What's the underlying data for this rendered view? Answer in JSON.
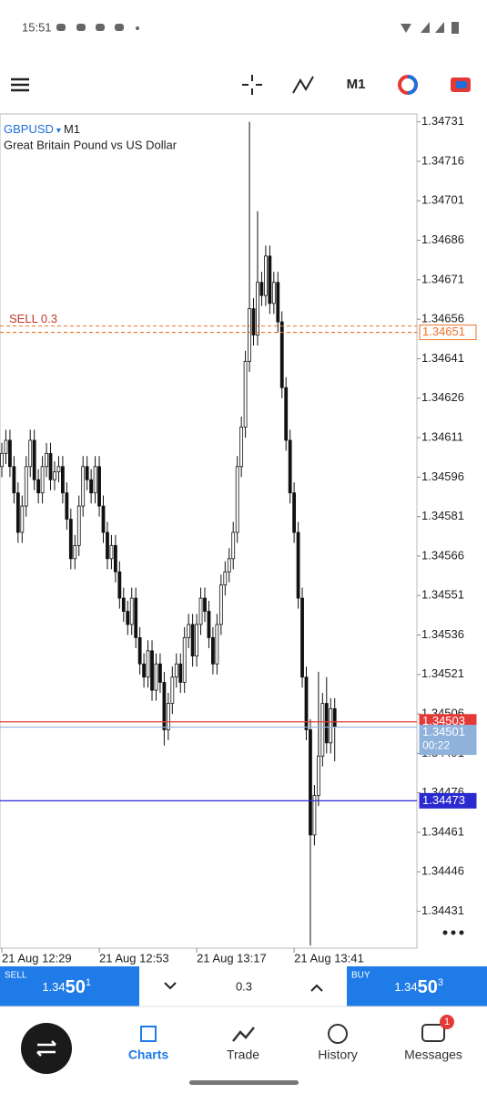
{
  "status_bar": {
    "time": "15:51"
  },
  "toolbar": {
    "timeframe": "M1"
  },
  "chart": {
    "symbol": "GBPUSD",
    "symbol_arrow": "▾",
    "timeframe": "M1",
    "description": "Great Britain Pound vs US Dollar",
    "ylim": [
      1.34417,
      1.34734
    ],
    "yticks": [
      1.34731,
      1.34716,
      1.34701,
      1.34686,
      1.34671,
      1.34656,
      1.34641,
      1.34626,
      1.34611,
      1.34596,
      1.34581,
      1.34566,
      1.34551,
      1.34536,
      1.34521,
      1.34506,
      1.34491,
      1.34476,
      1.34461,
      1.34446,
      1.34431
    ],
    "time_labels": [
      "21 Aug 12:29",
      "21 Aug 12:53",
      "21 Aug 13:17",
      "21 Aug 13:41"
    ],
    "candles": [
      [
        1.346,
        1.34609,
        1.34596,
        1.34605
      ],
      [
        1.34605,
        1.34614,
        1.34601,
        1.3461
      ],
      [
        1.3461,
        1.34614,
        1.34596,
        1.346
      ],
      [
        1.346,
        1.34604,
        1.34586,
        1.3459
      ],
      [
        1.3459,
        1.34594,
        1.34571,
        1.34575
      ],
      [
        1.34575,
        1.34589,
        1.34571,
        1.34585
      ],
      [
        1.34585,
        1.34604,
        1.34581,
        1.346
      ],
      [
        1.346,
        1.34614,
        1.34596,
        1.3461
      ],
      [
        1.3461,
        1.34614,
        1.34591,
        1.34595
      ],
      [
        1.34595,
        1.34599,
        1.34586,
        1.3459
      ],
      [
        1.3459,
        1.34604,
        1.34586,
        1.346
      ],
      [
        1.346,
        1.34609,
        1.34596,
        1.34605
      ],
      [
        1.34605,
        1.34609,
        1.34591,
        1.34595
      ],
      [
        1.34595,
        1.34602,
        1.34591,
        1.34598
      ],
      [
        1.34598,
        1.34604,
        1.34594,
        1.346
      ],
      [
        1.346,
        1.34604,
        1.34586,
        1.3459
      ],
      [
        1.3459,
        1.34594,
        1.34576,
        1.3458
      ],
      [
        1.3458,
        1.34584,
        1.34561,
        1.34565
      ],
      [
        1.34565,
        1.34574,
        1.34561,
        1.3457
      ],
      [
        1.3457,
        1.34589,
        1.34566,
        1.34585
      ],
      [
        1.34585,
        1.34604,
        1.34581,
        1.346
      ],
      [
        1.346,
        1.34604,
        1.34591,
        1.34595
      ],
      [
        1.34595,
        1.34599,
        1.34586,
        1.3459
      ],
      [
        1.3459,
        1.34604,
        1.34586,
        1.346
      ],
      [
        1.346,
        1.34604,
        1.34581,
        1.34585
      ],
      [
        1.34585,
        1.34589,
        1.34571,
        1.34575
      ],
      [
        1.34575,
        1.34579,
        1.34561,
        1.34565
      ],
      [
        1.34565,
        1.34574,
        1.34561,
        1.3457
      ],
      [
        1.3457,
        1.34574,
        1.34556,
        1.3456
      ],
      [
        1.3456,
        1.34564,
        1.34546,
        1.3455
      ],
      [
        1.3455,
        1.34554,
        1.34541,
        1.34545
      ],
      [
        1.34545,
        1.34549,
        1.34536,
        1.3454
      ],
      [
        1.3454,
        1.34554,
        1.34536,
        1.3455
      ],
      [
        1.3455,
        1.34554,
        1.34531,
        1.34535
      ],
      [
        1.34535,
        1.34539,
        1.34521,
        1.34525
      ],
      [
        1.34525,
        1.34529,
        1.34516,
        1.3452
      ],
      [
        1.3452,
        1.34534,
        1.34516,
        1.3453
      ],
      [
        1.3453,
        1.34534,
        1.34511,
        1.34515
      ],
      [
        1.34515,
        1.34529,
        1.34511,
        1.34525
      ],
      [
        1.34525,
        1.34529,
        1.34514,
        1.34518
      ],
      [
        1.34518,
        1.34522,
        1.34494,
        1.345
      ],
      [
        1.345,
        1.34514,
        1.34496,
        1.3451
      ],
      [
        1.3451,
        1.34524,
        1.34506,
        1.3452
      ],
      [
        1.3452,
        1.34529,
        1.34516,
        1.34525
      ],
      [
        1.34525,
        1.34529,
        1.34514,
        1.34518
      ],
      [
        1.34518,
        1.34539,
        1.34514,
        1.34535
      ],
      [
        1.34535,
        1.34544,
        1.34531,
        1.3454
      ],
      [
        1.3454,
        1.34544,
        1.34524,
        1.34528
      ],
      [
        1.34528,
        1.34544,
        1.34524,
        1.3454
      ],
      [
        1.3454,
        1.34554,
        1.34536,
        1.3455
      ],
      [
        1.3455,
        1.34554,
        1.34541,
        1.34545
      ],
      [
        1.34545,
        1.34549,
        1.34531,
        1.34535
      ],
      [
        1.34535,
        1.34539,
        1.34521,
        1.34525
      ],
      [
        1.34525,
        1.34544,
        1.34521,
        1.3454
      ],
      [
        1.3454,
        1.34559,
        1.34536,
        1.34555
      ],
      [
        1.34555,
        1.34564,
        1.34551,
        1.3456
      ],
      [
        1.3456,
        1.34569,
        1.34556,
        1.34565
      ],
      [
        1.34565,
        1.34579,
        1.34561,
        1.34575
      ],
      [
        1.34575,
        1.34604,
        1.34571,
        1.346
      ],
      [
        1.346,
        1.34619,
        1.34596,
        1.34615
      ],
      [
        1.34615,
        1.34644,
        1.34611,
        1.3464
      ],
      [
        1.3464,
        1.34731,
        1.34636,
        1.3466
      ],
      [
        1.3466,
        1.34664,
        1.34646,
        1.3465
      ],
      [
        1.3465,
        1.34697,
        1.34646,
        1.3467
      ],
      [
        1.3467,
        1.34674,
        1.34661,
        1.34665
      ],
      [
        1.34665,
        1.34684,
        1.34661,
        1.3468
      ],
      [
        1.3468,
        1.34684,
        1.34658,
        1.34662
      ],
      [
        1.34662,
        1.34674,
        1.34658,
        1.3467
      ],
      [
        1.3467,
        1.34674,
        1.34651,
        1.34655
      ],
      [
        1.34655,
        1.34659,
        1.34626,
        1.3463
      ],
      [
        1.3463,
        1.34634,
        1.34606,
        1.3461
      ],
      [
        1.3461,
        1.34614,
        1.34586,
        1.3459
      ],
      [
        1.3459,
        1.34594,
        1.34571,
        1.34575
      ],
      [
        1.34575,
        1.34579,
        1.34546,
        1.3455
      ],
      [
        1.3455,
        1.34554,
        1.34516,
        1.3452
      ],
      [
        1.3452,
        1.34524,
        1.34496,
        1.345
      ],
      [
        1.345,
        1.34504,
        1.34418,
        1.3446
      ],
      [
        1.3446,
        1.34479,
        1.34456,
        1.34475
      ],
      [
        1.34475,
        1.34522,
        1.34471,
        1.3449
      ],
      [
        1.3449,
        1.34514,
        1.34486,
        1.3451
      ],
      [
        1.3451,
        1.3452,
        1.34491,
        1.34495
      ],
      [
        1.34495,
        1.34512,
        1.34491,
        1.34508
      ],
      [
        1.34508,
        1.34512,
        1.34488,
        1.34501
      ]
    ],
    "order_line": {
      "label": "SELL 0.3",
      "price": 1.34651,
      "color": "#e8742a"
    },
    "ask_line": {
      "price": 1.34503,
      "color": "#e53935"
    },
    "bid_line": {
      "price": 1.34501,
      "timer": "00:22",
      "color": "#8fb2dc"
    },
    "level_line": {
      "price": 1.34473,
      "color": "#2a2ad0"
    }
  },
  "trade_panel": {
    "sell": {
      "label": "SELL",
      "price": [
        "1.34",
        "50",
        "1"
      ]
    },
    "volume": "0.3",
    "buy": {
      "label": "BUY",
      "price": [
        "1.34",
        "50",
        "3"
      ]
    }
  },
  "nav": {
    "items": [
      "Quotes",
      "Charts",
      "Trade",
      "History",
      "Messages"
    ],
    "badge": 1
  }
}
